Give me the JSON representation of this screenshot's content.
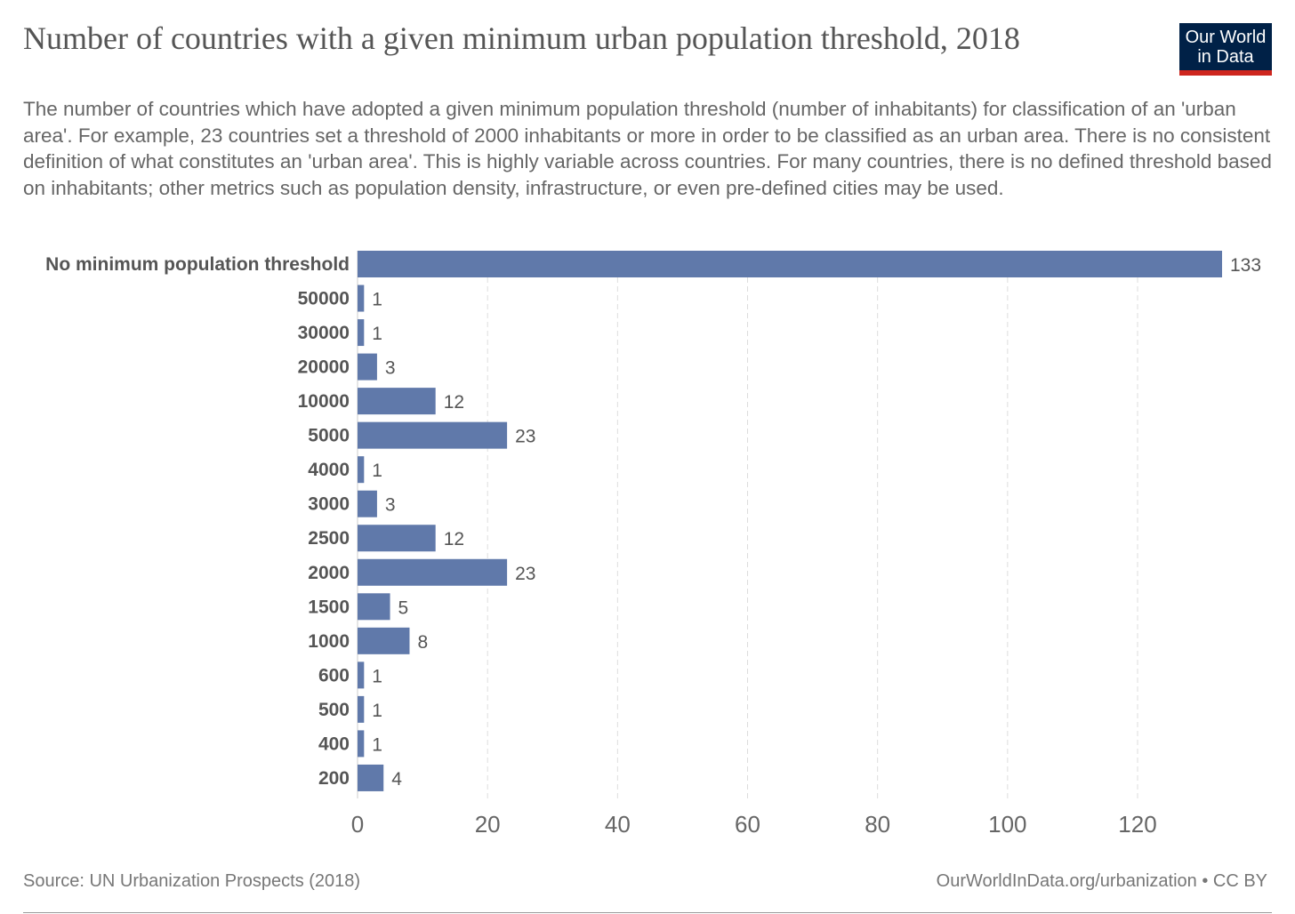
{
  "header": {
    "title": "Number of countries with a given minimum urban population threshold, 2018",
    "subtitle": "The number of countries which have adopted a given minimum population threshold (number of inhabitants) for classification of an 'urban area'. For example, 23 countries set a threshold of 2000 inhabitants or more in order to be classified as an urban area. There is no consistent definition of what constitutes an 'urban area'. This is highly variable across countries. For many countries, there is no defined threshold based on inhabitants; other metrics such as population density, infrastructure, or even pre-defined cities may be used.",
    "logo_line1": "Our World",
    "logo_line2": "in Data"
  },
  "footer": {
    "source": "Source: UN Urbanization Prospects (2018)",
    "credit": "OurWorldInData.org/urbanization • CC BY"
  },
  "colors": {
    "bar": "#6079aa",
    "logo_bg": "#002147",
    "logo_accent": "#ce261e"
  },
  "chart_data": {
    "type": "bar",
    "orientation": "horizontal",
    "title": "Number of countries with a given minimum urban population threshold, 2018",
    "categories": [
      "No minimum population threshold",
      "50000",
      "30000",
      "20000",
      "10000",
      "5000",
      "4000",
      "3000",
      "2500",
      "2000",
      "1500",
      "1000",
      "600",
      "500",
      "400",
      "200"
    ],
    "values": [
      133,
      1,
      1,
      3,
      12,
      23,
      1,
      3,
      12,
      23,
      5,
      8,
      1,
      1,
      1,
      4
    ],
    "xlim": [
      0,
      133
    ],
    "xticks": [
      0,
      20,
      40,
      60,
      80,
      100,
      120
    ],
    "grid": "vertical dashed",
    "xlabel": "",
    "ylabel": ""
  }
}
